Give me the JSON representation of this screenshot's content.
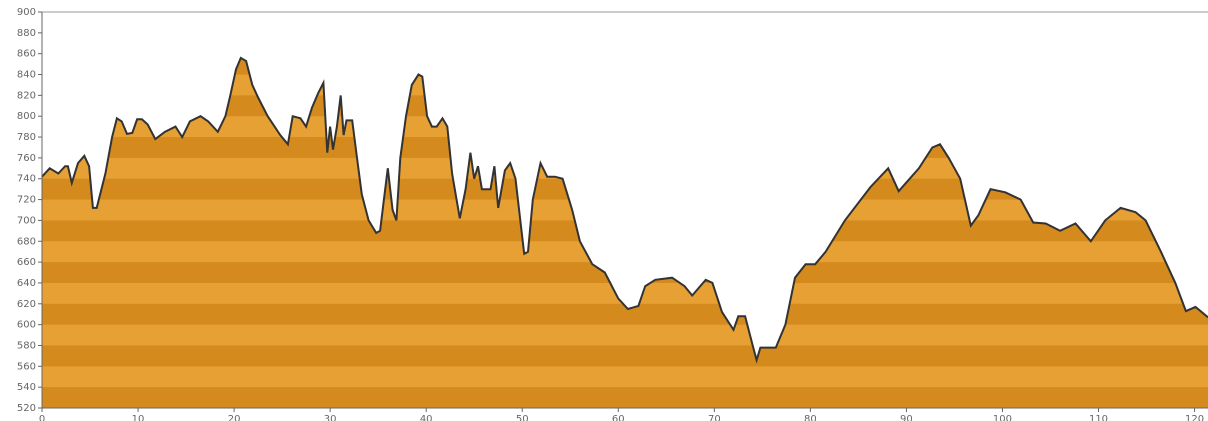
{
  "chart_data": {
    "type": "area",
    "x": [
      0,
      0.8,
      1.7,
      2.4,
      2.7,
      3.1,
      3.75,
      4.4,
      4.9,
      5.3,
      5.7,
      6.6,
      7.3,
      7.8,
      8.3,
      8.85,
      9.4,
      9.9,
      10.4,
      11.0,
      11.8,
      12.8,
      13.9,
      14.6,
      15.4,
      16.5,
      17.3,
      18.3,
      19.1,
      19.6,
      20.2,
      20.7,
      21.25,
      21.9,
      22.5,
      23.5,
      24.8,
      25.6,
      26.1,
      26.9,
      27.5,
      28.1,
      28.75,
      29.3,
      29.7,
      30.0,
      30.3,
      30.7,
      31.1,
      31.4,
      31.7,
      32.3,
      32.8,
      33.3,
      34.0,
      34.8,
      35.2,
      35.6,
      36.0,
      36.5,
      36.9,
      37.3,
      37.9,
      38.5,
      39.2,
      39.6,
      40.1,
      40.6,
      41.1,
      41.7,
      42.2,
      42.7,
      43.5,
      44.1,
      44.6,
      45.0,
      45.4,
      45.8,
      46.7,
      47.1,
      47.5,
      48.2,
      48.75,
      49.3,
      49.8,
      50.2,
      50.6,
      51.1,
      51.9,
      52.6,
      53.4,
      54.2,
      55.2,
      56.0,
      57.3,
      58.6,
      60.0,
      61.0,
      62.1,
      62.8,
      63.85,
      65.6,
      66.9,
      67.7,
      69.1,
      69.8,
      70.8,
      72.0,
      72.5,
      73.2,
      74.0,
      74.4,
      74.8,
      76.4,
      77.4,
      78.4,
      79.5,
      80.5,
      81.6,
      83.6,
      86.25,
      88.1,
      89.2,
      91.3,
      92.7,
      93.5,
      94.4,
      95.6,
      96.7,
      97.5,
      98.75,
      100.3,
      101.9,
      103.2,
      104.5,
      106.0,
      107.6,
      109.2,
      110.7,
      112.3,
      113.85,
      114.9,
      116.5,
      118.0,
      119.1,
      120.1,
      121.4
    ],
    "values": [
      742,
      750,
      745,
      752,
      752,
      736,
      755,
      762,
      752,
      712,
      712,
      745,
      780,
      798,
      795,
      783,
      784,
      797,
      797,
      792,
      778,
      785,
      790,
      780,
      795,
      800,
      795,
      785,
      800,
      820,
      845,
      856,
      853,
      830,
      818,
      800,
      782,
      773,
      800,
      798,
      790,
      808,
      822,
      832,
      765,
      790,
      768,
      790,
      820,
      782,
      796,
      796,
      760,
      725,
      700,
      688,
      690,
      720,
      750,
      710,
      700,
      760,
      800,
      830,
      840,
      838,
      800,
      790,
      790,
      798,
      790,
      745,
      702,
      730,
      765,
      740,
      752,
      730,
      730,
      752,
      712,
      748,
      755,
      740,
      700,
      668,
      670,
      720,
      755,
      742,
      742,
      740,
      710,
      680,
      658,
      650,
      625,
      615,
      618,
      637,
      643,
      645,
      637,
      628,
      643,
      640,
      612,
      595,
      608,
      608,
      580,
      566,
      578,
      578,
      600,
      645,
      658,
      658,
      670,
      700,
      732,
      750,
      728,
      750,
      770,
      773,
      760,
      740,
      695,
      705,
      730,
      727,
      720,
      698,
      697,
      690,
      697,
      680,
      700,
      712,
      708,
      700,
      670,
      640,
      613,
      617,
      607
    ],
    "xlim": [
      0,
      121.4
    ],
    "ylim": [
      520,
      900
    ],
    "xticks": [
      0,
      10,
      20,
      30,
      40,
      50,
      60,
      70,
      80,
      90,
      100,
      110,
      120
    ],
    "yticks": [
      520,
      540,
      560,
      580,
      600,
      620,
      640,
      660,
      680,
      700,
      720,
      740,
      760,
      780,
      800,
      820,
      840,
      860,
      880,
      900
    ],
    "color": "#e6a033",
    "stripe_color": "#d48a1c",
    "line_color": "#333333"
  }
}
